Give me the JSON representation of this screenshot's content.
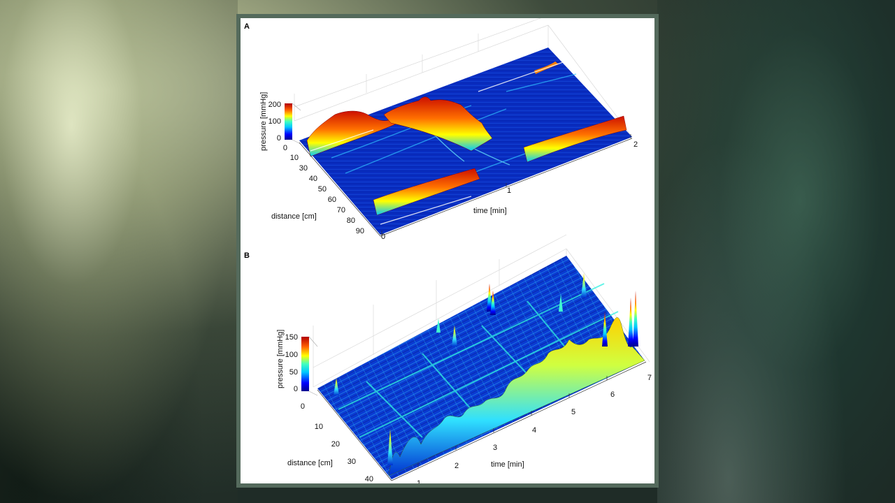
{
  "chart_data": [
    {
      "panel": "A",
      "type": "surface3d",
      "xlabel": "time [min]",
      "ylabel": "distance [cm]",
      "zlabel": "pressure [mmHg]",
      "x_ticks": [
        "0",
        "1",
        "2"
      ],
      "y_ticks": [
        "0",
        "10",
        "30",
        "40",
        "50",
        "60",
        "70",
        "80",
        "90"
      ],
      "colorbar_ticks": [
        "200",
        "100",
        "0"
      ],
      "xlim": [
        0,
        2
      ],
      "ylim": [
        0,
        90
      ],
      "zlim": [
        0,
        200
      ],
      "colormap": "jet",
      "colors": {
        "low": "#00008f",
        "mid": "#00c8ff",
        "high": "#ffd200",
        "max": "#b20000"
      }
    },
    {
      "panel": "B",
      "type": "surface3d",
      "xlabel": "time [min]",
      "ylabel": "distance [cm]",
      "zlabel": "pressure [mmHg]",
      "x_ticks": [
        "1",
        "2",
        "3",
        "4",
        "5",
        "6",
        "7"
      ],
      "y_ticks": [
        "0",
        "10",
        "20",
        "30",
        "40"
      ],
      "colorbar_ticks": [
        "150",
        "100",
        "50",
        "0"
      ],
      "xlim": [
        1,
        7
      ],
      "ylim": [
        0,
        40
      ],
      "zlim": [
        0,
        150
      ],
      "colormap": "jet",
      "colors": {
        "low": "#00008f",
        "mid": "#00c8ff",
        "high": "#ffd200",
        "max": "#b20000"
      }
    }
  ]
}
